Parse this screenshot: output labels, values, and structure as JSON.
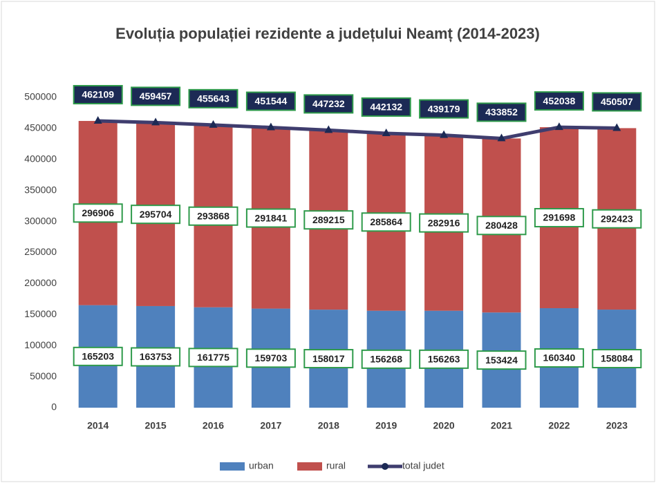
{
  "chart_data": {
    "type": "bar",
    "stacked": true,
    "title": "Evoluția populației rezidente a județului Neamț (2014-2023)",
    "categories": [
      "2014",
      "2015",
      "2016",
      "2017",
      "2018",
      "2019",
      "2020",
      "2021",
      "2022",
      "2023"
    ],
    "series": [
      {
        "name": "urban",
        "type": "bar",
        "color": "#4f81bd",
        "values": [
          165203,
          163753,
          161775,
          159703,
          158017,
          156268,
          156263,
          153424,
          160340,
          158084
        ]
      },
      {
        "name": "rural",
        "type": "bar",
        "color": "#c0504d",
        "values": [
          296906,
          295704,
          293868,
          291841,
          289215,
          285864,
          282916,
          280428,
          291698,
          292423
        ]
      },
      {
        "name": "total judet",
        "type": "line",
        "color": "#3f3d6e",
        "values": [
          462109,
          459457,
          455643,
          451544,
          447232,
          442132,
          439179,
          433852,
          452038,
          450507
        ]
      }
    ],
    "ylim": [
      0,
      500000
    ],
    "yticks": [
      0,
      50000,
      100000,
      150000,
      200000,
      250000,
      300000,
      350000,
      400000,
      450000,
      500000
    ],
    "grid": false,
    "legend": "bottom"
  }
}
